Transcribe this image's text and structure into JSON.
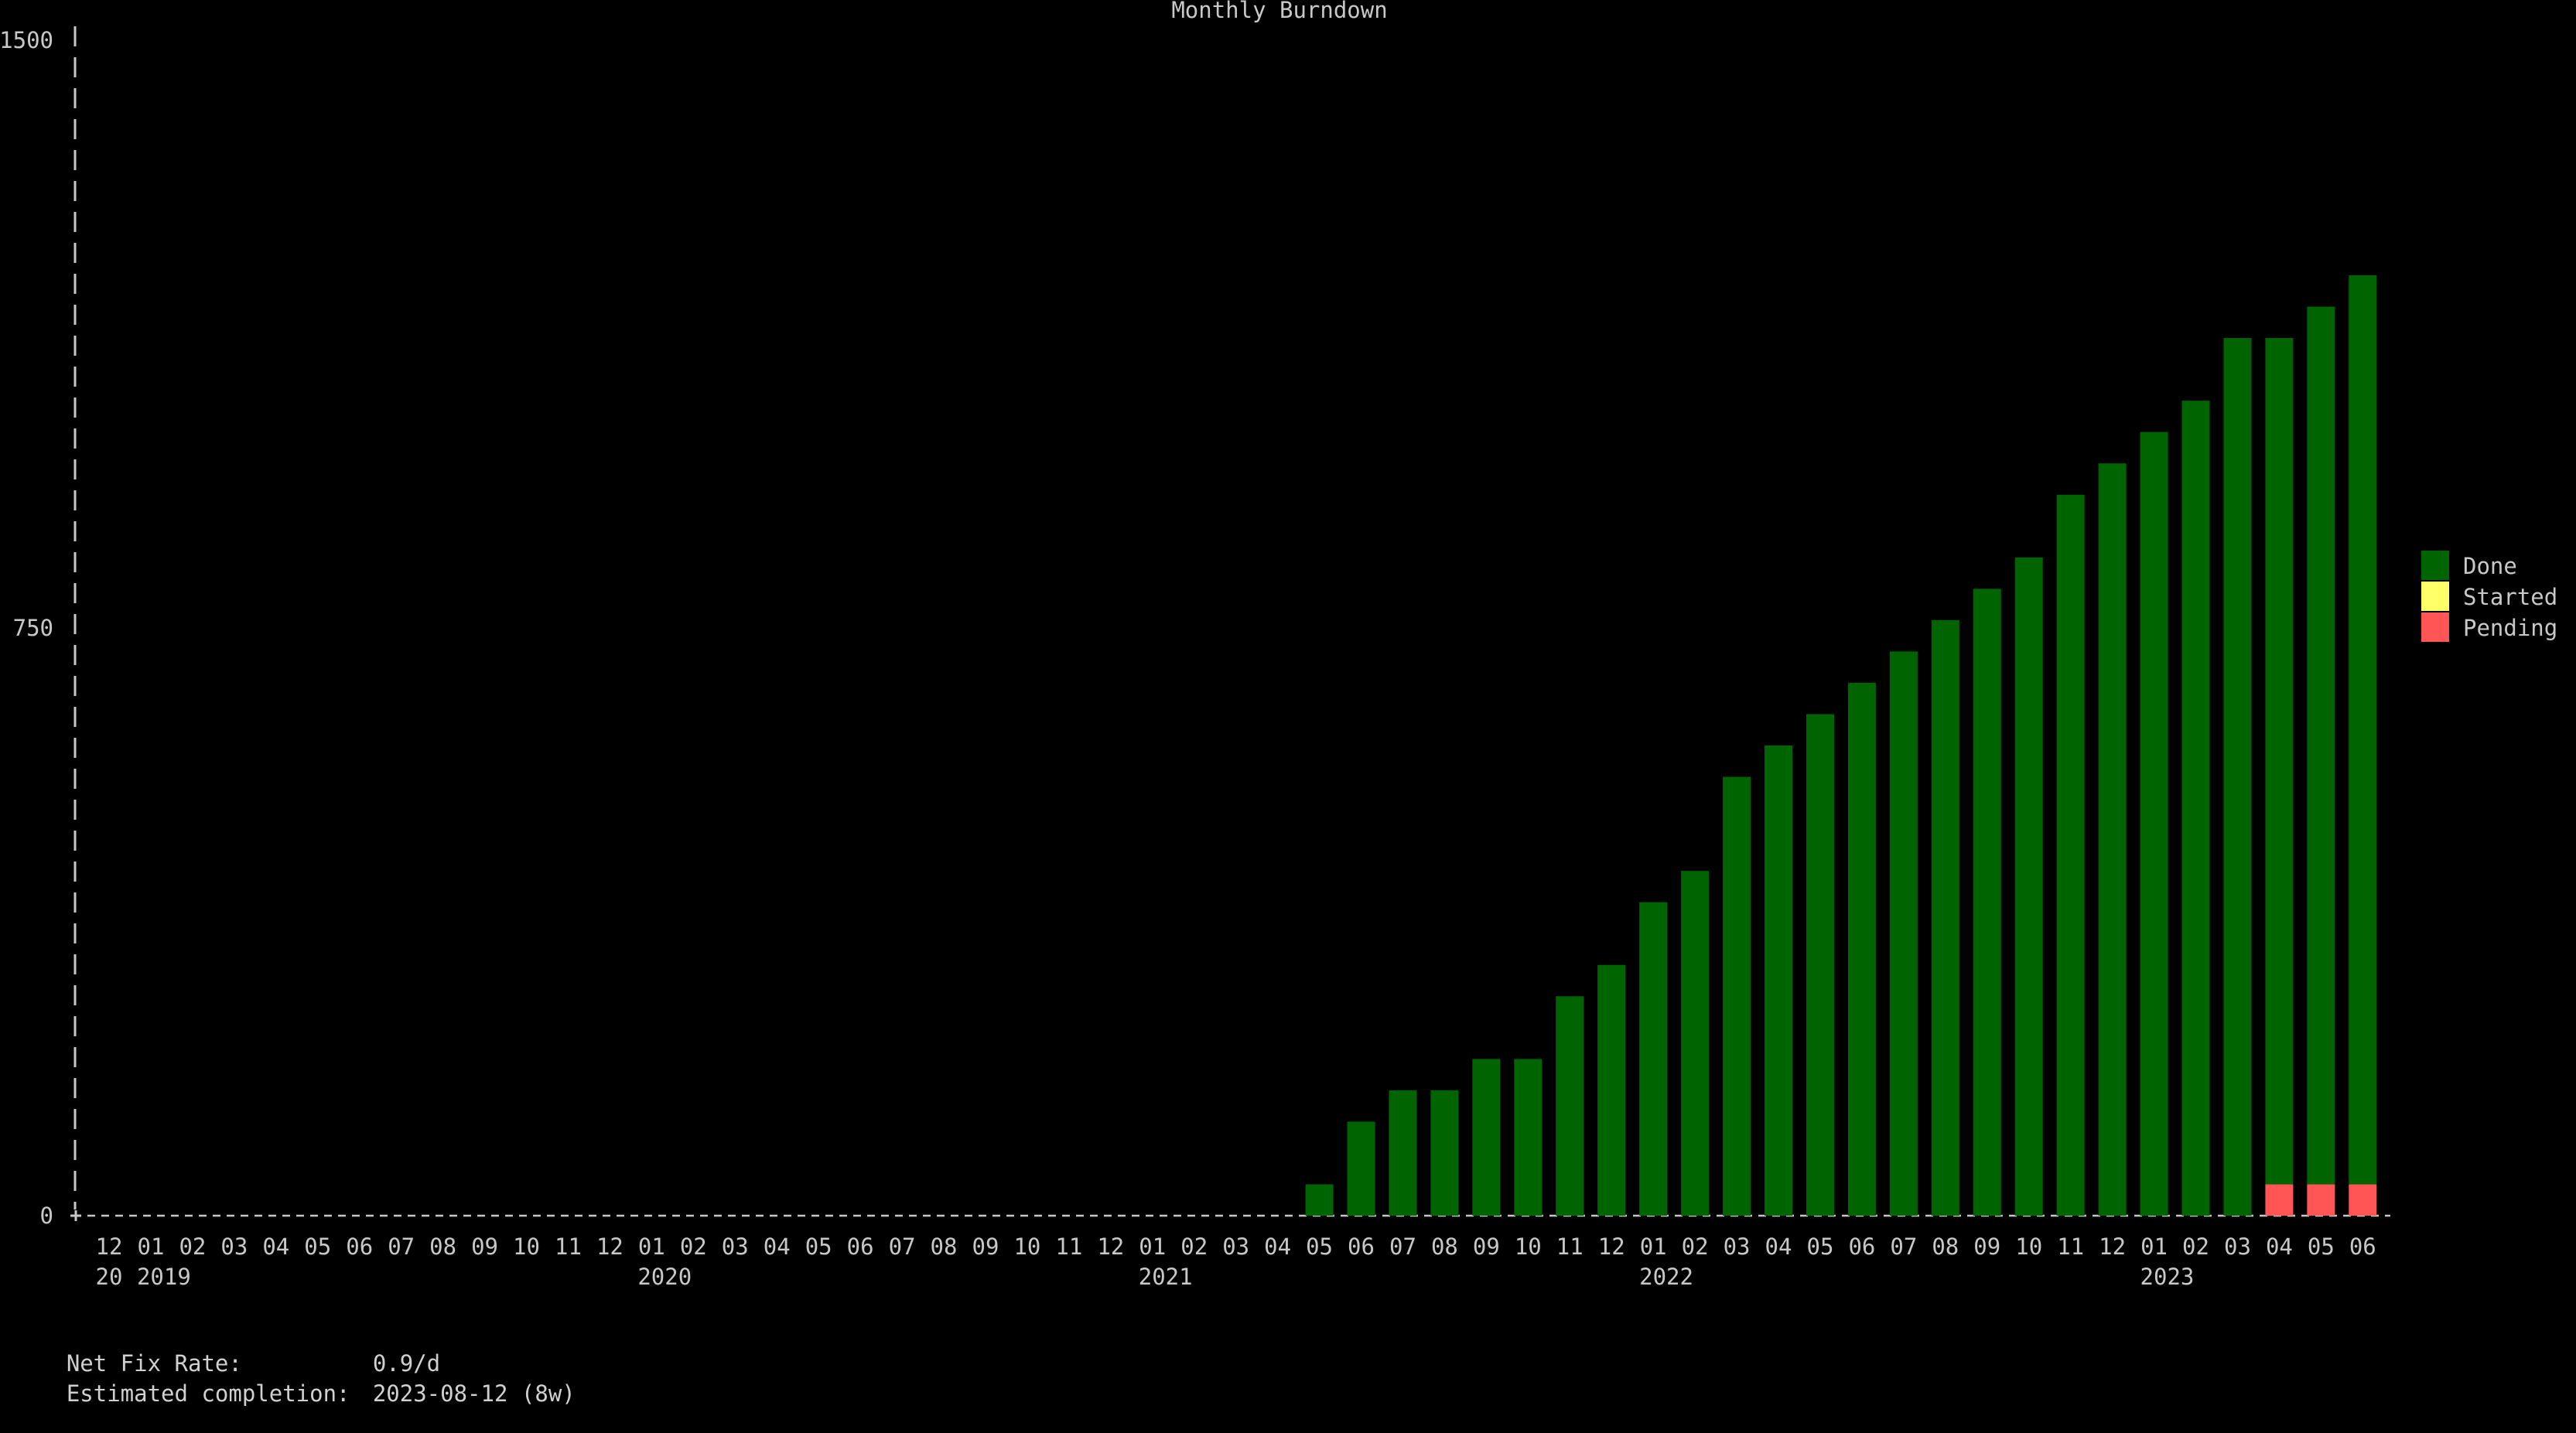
{
  "colors": {
    "background": "#000000",
    "text": "#c8c8c8",
    "axis": "#c8c8c8",
    "done": "#006400",
    "started": "#ffff66",
    "pending": "#ff5555"
  },
  "chart_data": {
    "type": "bar",
    "stacked": true,
    "title": "Monthly Burndown",
    "ylim": [
      0,
      1500
    ],
    "y_ticks": [
      0,
      750,
      1500
    ],
    "categories": [
      "12",
      "01",
      "02",
      "03",
      "04",
      "05",
      "06",
      "07",
      "08",
      "09",
      "10",
      "11",
      "12",
      "01",
      "02",
      "03",
      "04",
      "05",
      "06",
      "07",
      "08",
      "09",
      "10",
      "11",
      "12",
      "01",
      "02",
      "03",
      "04",
      "05",
      "06",
      "07",
      "08",
      "09",
      "10",
      "11",
      "12",
      "01",
      "02",
      "03",
      "04",
      "05",
      "06",
      "07",
      "08",
      "09",
      "10",
      "11",
      "12",
      "01",
      "02",
      "03",
      "04",
      "05",
      "06"
    ],
    "year_labels": [
      {
        "index": 0,
        "label": "20"
      },
      {
        "index": 1,
        "label": "2019"
      },
      {
        "index": 13,
        "label": "2020"
      },
      {
        "index": 25,
        "label": "2021"
      },
      {
        "index": 37,
        "label": "2022"
      },
      {
        "index": 49,
        "label": "2023"
      }
    ],
    "legend": {
      "placement": "right",
      "entries": [
        {
          "name": "Done",
          "color_key": "done"
        },
        {
          "name": "Started",
          "color_key": "started"
        },
        {
          "name": "Pending",
          "color_key": "pending"
        }
      ]
    },
    "series": [
      {
        "name": "Done",
        "values": [
          0,
          0,
          0,
          0,
          0,
          0,
          0,
          0,
          0,
          0,
          0,
          0,
          0,
          0,
          0,
          0,
          0,
          0,
          0,
          0,
          0,
          0,
          0,
          0,
          0,
          0,
          0,
          0,
          0,
          40,
          120,
          160,
          160,
          200,
          200,
          280,
          320,
          400,
          440,
          560,
          600,
          640,
          680,
          720,
          760,
          800,
          840,
          920,
          960,
          1000,
          1040,
          1120,
          1080,
          1120,
          1160
        ]
      },
      {
        "name": "Started",
        "values": [
          0,
          0,
          0,
          0,
          0,
          0,
          0,
          0,
          0,
          0,
          0,
          0,
          0,
          0,
          0,
          0,
          0,
          0,
          0,
          0,
          0,
          0,
          0,
          0,
          0,
          0,
          0,
          0,
          0,
          0,
          0,
          0,
          0,
          0,
          0,
          0,
          0,
          0,
          0,
          0,
          0,
          0,
          0,
          0,
          0,
          0,
          0,
          0,
          0,
          0,
          0,
          0,
          0,
          0,
          0
        ]
      },
      {
        "name": "Pending",
        "values": [
          0,
          0,
          0,
          0,
          0,
          0,
          0,
          0,
          0,
          0,
          0,
          0,
          0,
          0,
          0,
          0,
          0,
          0,
          0,
          0,
          0,
          0,
          0,
          0,
          0,
          0,
          0,
          0,
          0,
          0,
          0,
          0,
          0,
          0,
          0,
          0,
          0,
          0,
          0,
          0,
          0,
          0,
          0,
          0,
          0,
          0,
          0,
          0,
          0,
          0,
          0,
          0,
          40,
          40,
          40
        ]
      }
    ]
  },
  "footer": {
    "net_fix_rate_label": "Net Fix Rate:",
    "net_fix_rate_value": "0.9/d",
    "estimated_completion_label": "Estimated completion:",
    "estimated_completion_value": "2023-08-12 (8w)"
  }
}
